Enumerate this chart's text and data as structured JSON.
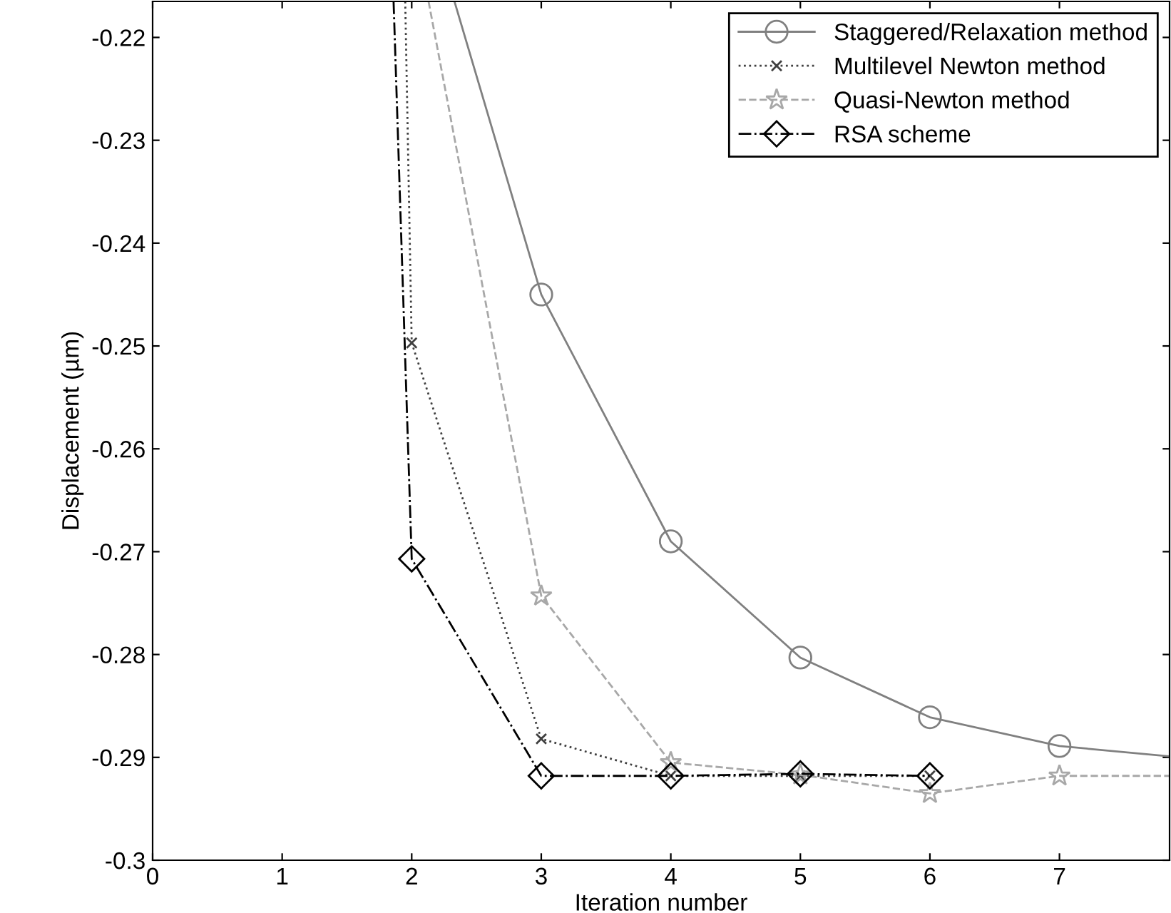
{
  "chart_data": {
    "type": "line",
    "xlabel": "Iteration number",
    "ylabel": "Displacement (µm)",
    "xlim": [
      0,
      7.85
    ],
    "ylim": [
      -0.3,
      -0.2165
    ],
    "xticks": [
      0,
      1,
      2,
      3,
      4,
      5,
      6,
      7
    ],
    "yticks": [
      {
        "value": -0.3,
        "label": "-0.3"
      },
      {
        "value": -0.29,
        "label": "-0.29"
      },
      {
        "value": -0.28,
        "label": "-0.28"
      },
      {
        "value": -0.27,
        "label": "-0.27"
      },
      {
        "value": -0.26,
        "label": "-0.26"
      },
      {
        "value": -0.25,
        "label": "-0.25"
      },
      {
        "value": -0.24,
        "label": "-0.24"
      },
      {
        "value": -0.23,
        "label": "-0.23"
      },
      {
        "value": -0.22,
        "label": "-0.22"
      }
    ],
    "grid": false,
    "legend": "top right",
    "series": [
      {
        "name": "Staggered/Relaxation method",
        "color": "#808080",
        "marker": "circle",
        "line_style": "solid",
        "x": [
          2.33,
          3,
          4,
          5,
          6,
          7,
          7.85
        ],
        "values": [
          -0.2165,
          -0.245,
          -0.269,
          -0.2803,
          -0.2861,
          -0.2889,
          -0.2899
        ]
      },
      {
        "name": "Multilevel Newton method",
        "color": "#404040",
        "marker": "cross",
        "line_style": "dotted",
        "x": [
          1.95,
          2,
          3,
          4,
          5,
          6
        ],
        "values": [
          -0.2165,
          -0.2497,
          -0.2882,
          -0.2918,
          -0.2918,
          -0.2918
        ]
      },
      {
        "name": "Quasi-Newton method",
        "color": "#a8a8a8",
        "marker": "star",
        "line_style": "dashed",
        "x": [
          2.13,
          3,
          4,
          5,
          6,
          7,
          7.85
        ],
        "values": [
          -0.2165,
          -0.2743,
          -0.2905,
          -0.2917,
          -0.2935,
          -0.2918,
          -0.2918
        ]
      },
      {
        "name": "RSA scheme",
        "color": "#000000",
        "marker": "diamond",
        "line_style": "dashdot",
        "x": [
          1.86,
          2,
          3,
          4,
          5,
          6
        ],
        "values": [
          -0.2165,
          -0.2707,
          -0.2918,
          -0.2918,
          -0.2916,
          -0.2918
        ]
      }
    ]
  }
}
